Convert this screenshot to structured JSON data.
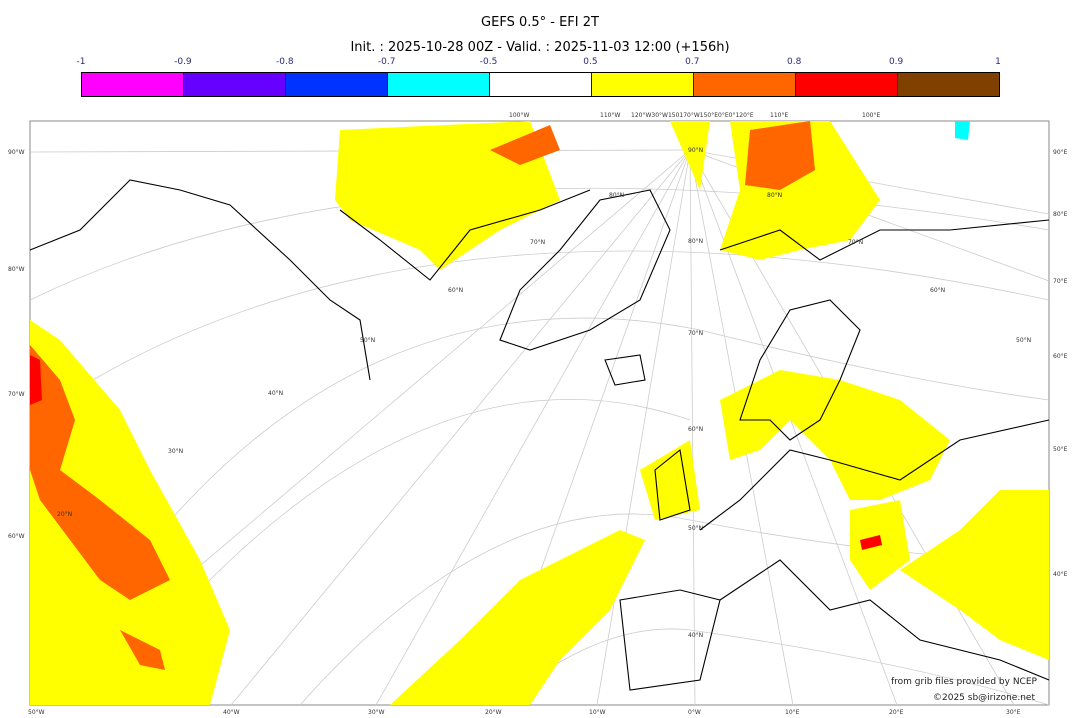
{
  "title": "GEFS 0.5° - EFI 2T",
  "subtitle": "Init. : 2025-10-28 00Z - Valid. : 2025-11-03 12:00 (+156h)",
  "colorbar": {
    "ticks": [
      "-1",
      "-0.9",
      "-0.8",
      "-0.7",
      "-0.5",
      "0.5",
      "0.7",
      "0.8",
      "0.9",
      "1"
    ],
    "colors": [
      "#ff00ff",
      "#6600ff",
      "#0033ff",
      "#00ffff",
      "#ffffff",
      "#ffff00",
      "#ff6600",
      "#ff0000",
      "#804000"
    ]
  },
  "axes": {
    "bottom": [
      "50°W",
      "40°W",
      "30°W",
      "20°W",
      "10°W",
      "0°W",
      "10°E",
      "20°E",
      "30°E"
    ],
    "left": [
      "90°W",
      "80°W",
      "70°W",
      "60°W"
    ],
    "right": [
      "90°E",
      "80°E",
      "70°E",
      "60°E",
      "50°E",
      "40°E"
    ],
    "top": [
      "100°W",
      "110°W",
      "120°W30°W150170°W150°E0°E0°120°E",
      "110°E",
      "100°E"
    ],
    "lat": [
      "90°N",
      "80°N",
      "70°N",
      "60°N",
      "50°N",
      "40°N",
      "30°N",
      "20°N"
    ]
  },
  "credits": {
    "source": "from grib files provided by NCEP",
    "copyright": "©2025 sb@irizone.net"
  }
}
